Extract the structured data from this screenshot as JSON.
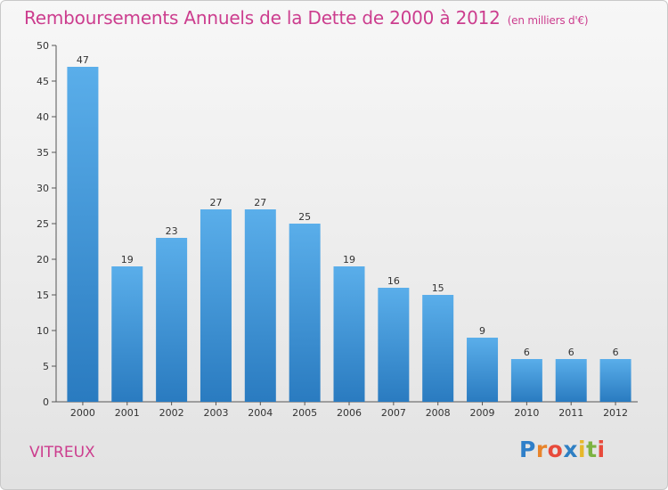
{
  "header": {
    "title": "Remboursements Annuels de la Dette de 2000 à 2012",
    "unit": "(en milliers d'€)"
  },
  "footer": {
    "commune": "VITREUX",
    "logo_letters": [
      "P",
      "r",
      "o",
      "x",
      "i",
      "t",
      "i"
    ],
    "logo_colors": [
      "#2f7fc9",
      "#e8842b",
      "#e84a3b",
      "#2e7fc3",
      "#e6b82a",
      "#7cb342",
      "#e84a3b"
    ]
  },
  "chart_data": {
    "type": "bar",
    "title": "Remboursements Annuels de la Dette de 2000 à 2012",
    "categories": [
      "2000",
      "2001",
      "2002",
      "2003",
      "2004",
      "2005",
      "2006",
      "2007",
      "2008",
      "2009",
      "2010",
      "2011",
      "2012"
    ],
    "values": [
      47,
      19,
      23,
      27,
      27,
      25,
      19,
      16,
      15,
      9,
      6,
      6,
      6
    ],
    "ylim": [
      0,
      50
    ],
    "yticks": [
      0,
      5,
      10,
      15,
      20,
      25,
      30,
      35,
      40,
      45,
      50
    ],
    "grid": false,
    "colors": {
      "bar_light": "#5aaeea",
      "bar_dark": "#2a7bc0"
    }
  }
}
